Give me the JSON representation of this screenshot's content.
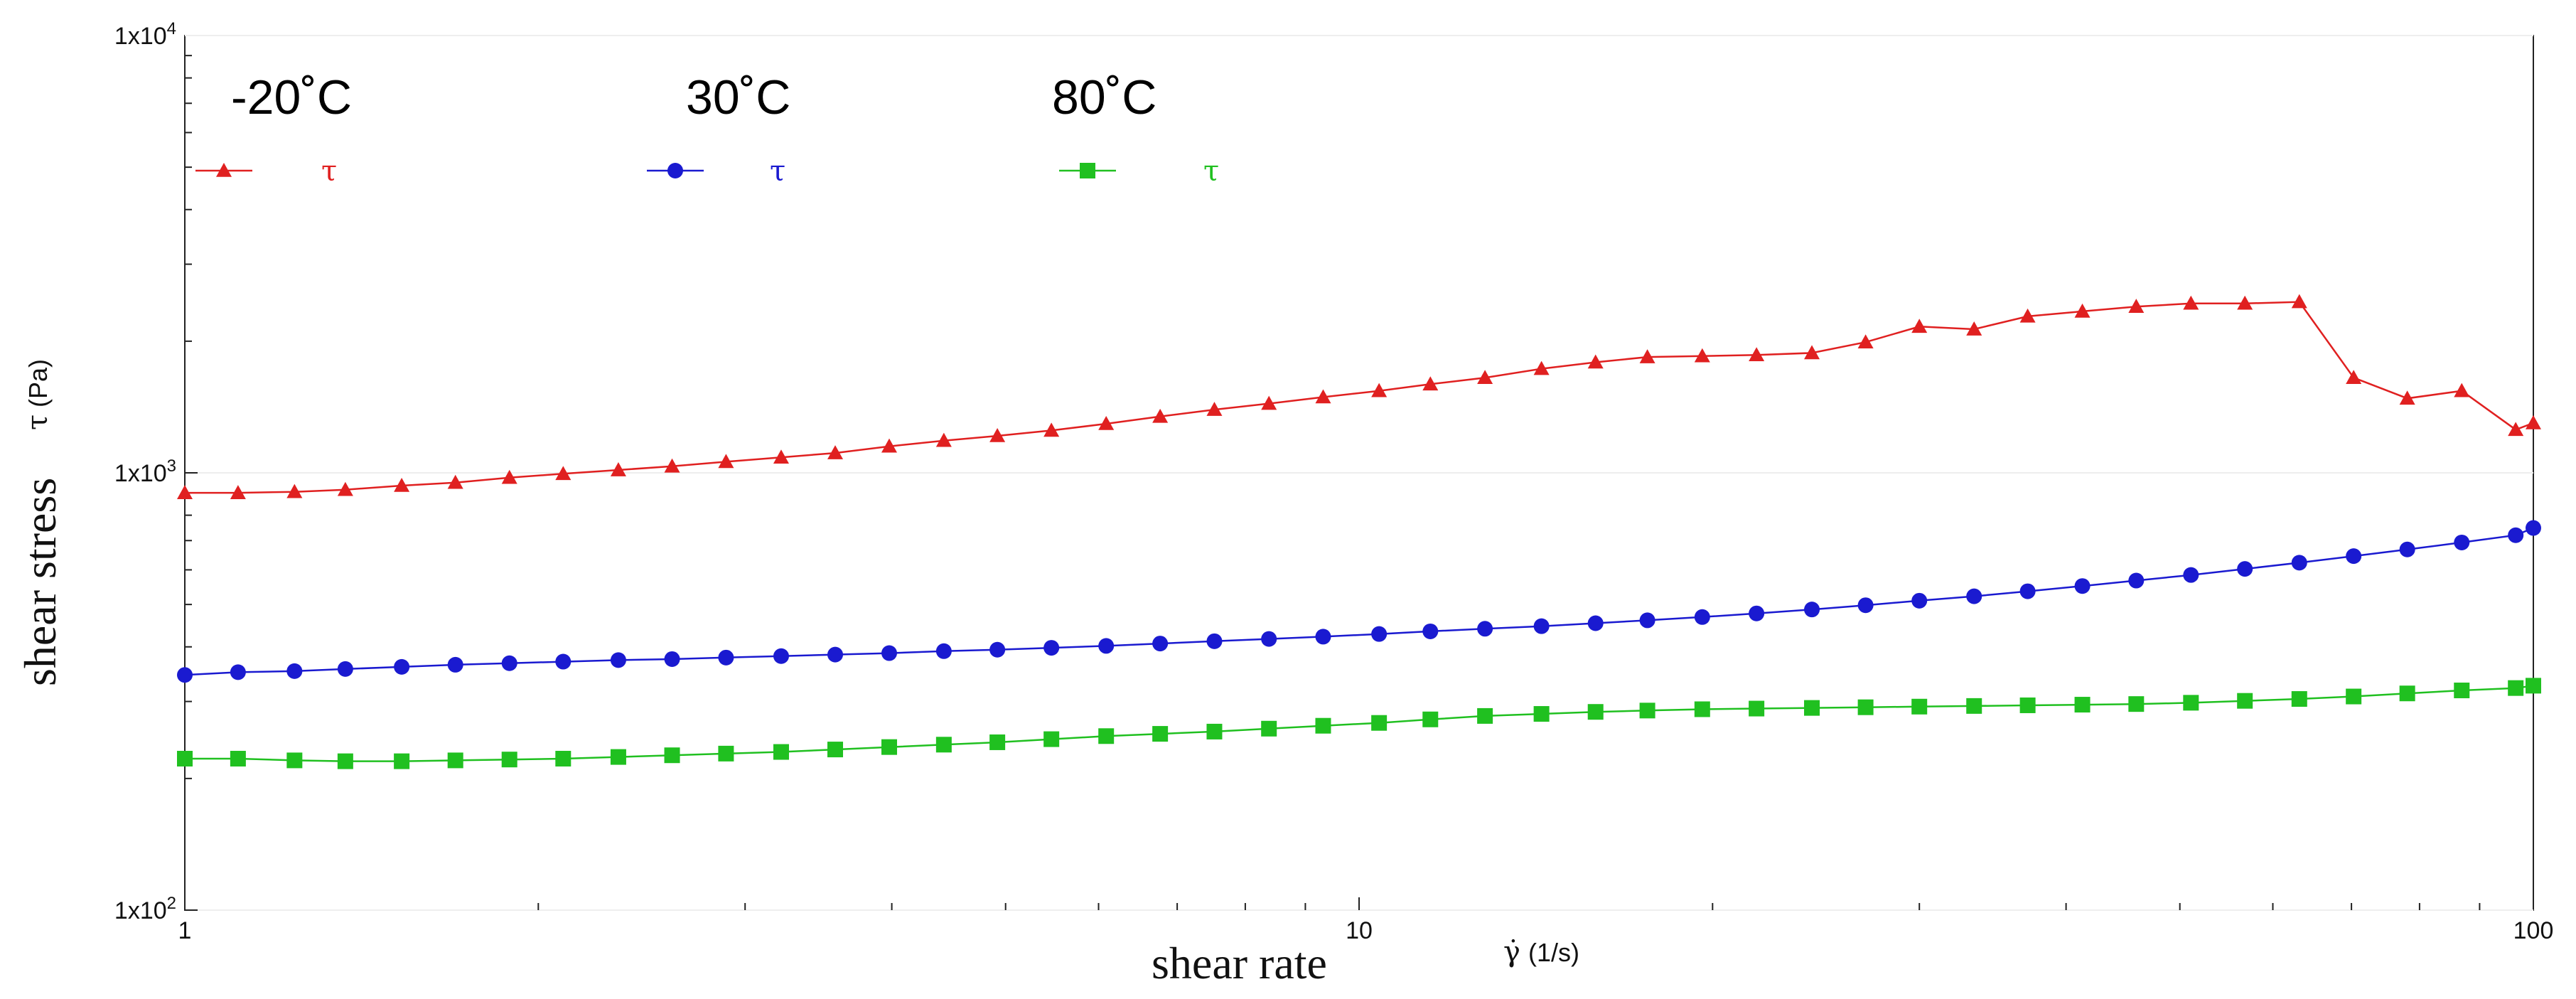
{
  "chart_data": {
    "type": "line",
    "xscale": "log",
    "yscale": "log",
    "xlim": [
      1,
      100
    ],
    "ylim": [
      100,
      10000
    ],
    "xlabel": "shear rate",
    "xlabel_symbol": "γ̇",
    "xlabel_unit": "(1/s)",
    "ylabel": "shear stress",
    "ylabel_symbol": "τ",
    "ylabel_unit": "(Pa)",
    "x_ticks": [
      {
        "value": 1,
        "label": "1"
      },
      {
        "value": 10,
        "label": "10"
      },
      {
        "value": 100,
        "label": "100"
      }
    ],
    "y_ticks": [
      {
        "value": 100,
        "mantissa": "1x10",
        "exp": "2"
      },
      {
        "value": 1000,
        "mantissa": "1x10",
        "exp": "3"
      },
      {
        "value": 10000,
        "mantissa": "1x10",
        "exp": "4"
      }
    ],
    "x": [
      1.0,
      1.11,
      1.24,
      1.37,
      1.53,
      1.7,
      1.89,
      2.1,
      2.34,
      2.6,
      2.89,
      3.22,
      3.58,
      3.98,
      4.43,
      4.92,
      5.47,
      6.09,
      6.77,
      7.53,
      8.38,
      9.32,
      10.4,
      11.5,
      12.8,
      14.3,
      15.9,
      17.6,
      19.6,
      21.8,
      24.3,
      27.0,
      30.0,
      33.4,
      37.1,
      41.3,
      45.9,
      51.1,
      56.8,
      63.2,
      70.3,
      78.1,
      86.9,
      96.6,
      100
    ],
    "series": [
      {
        "name": "-20˚C",
        "legend_symbol": "τ",
        "color": "#e02020",
        "marker": "triangle",
        "values": [
          900,
          900,
          905,
          915,
          935,
          950,
          975,
          995,
          1015,
          1035,
          1060,
          1085,
          1110,
          1150,
          1185,
          1215,
          1250,
          1295,
          1345,
          1395,
          1440,
          1490,
          1540,
          1595,
          1650,
          1730,
          1790,
          1840,
          1850,
          1860,
          1880,
          1990,
          2160,
          2130,
          2280,
          2340,
          2400,
          2440,
          2440,
          2460,
          1650,
          1480,
          1540,
          1255,
          1300
        ]
      },
      {
        "name": "30˚C",
        "legend_symbol": "τ",
        "color": "#1a1ad0",
        "marker": "circle",
        "values": [
          345,
          350,
          352,
          356,
          360,
          364,
          367,
          370,
          373,
          375,
          378,
          381,
          384,
          387,
          391,
          394,
          398,
          402,
          407,
          412,
          417,
          422,
          428,
          434,
          440,
          446,
          453,
          460,
          468,
          477,
          487,
          498,
          510,
          522,
          536,
          551,
          567,
          584,
          603,
          623,
          645,
          668,
          693,
          720,
          748
        ]
      },
      {
        "name": "80˚C",
        "legend_symbol": "τ",
        "color": "#20c020",
        "marker": "square",
        "values": [
          222,
          222,
          220,
          219,
          219,
          220,
          221,
          222,
          224,
          226,
          228,
          230,
          233,
          236,
          239,
          242,
          246,
          250,
          253,
          256,
          260,
          264,
          268,
          273,
          278,
          281,
          284,
          286,
          288,
          289,
          290,
          291,
          292,
          293,
          294,
          295,
          296,
          298,
          301,
          304,
          308,
          313,
          318,
          322,
          326
        ]
      }
    ]
  }
}
